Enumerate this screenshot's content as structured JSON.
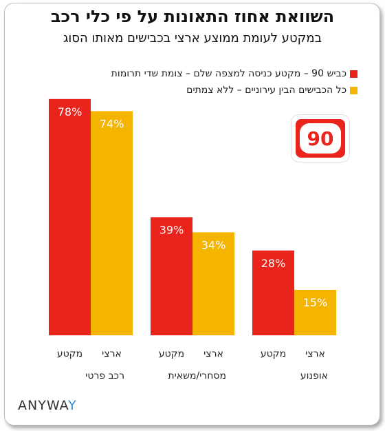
{
  "title": "השוואת אחוז התאונות על פי כלי רכב",
  "subtitle": "במקטע לעומת ממוצע ארצי בכבישים מאותו הסוג",
  "legend": [
    {
      "label": "כביש 90 – מקטע כניסה למצפה שלם – צומת שדי תרומות",
      "color": "#e8241d"
    },
    {
      "label": "כל הכבישים הבין עירוניים – ללא צמתים",
      "color": "#f5b400"
    }
  ],
  "road_sign": {
    "number": "90"
  },
  "logo": {
    "main": "ANYWA",
    "accent": "Y"
  },
  "chart_data": {
    "type": "bar",
    "categories": [
      "רכב פרטי",
      "מסחרי/משאית",
      "אופנוע"
    ],
    "bar_labels": [
      "מקטע",
      "ארצי"
    ],
    "series": [
      {
        "name": "מקטע",
        "values": [
          78,
          39,
          28
        ],
        "color": "#e8241d",
        "labels": [
          "78%",
          "39%",
          "28%"
        ]
      },
      {
        "name": "ארצי",
        "values": [
          74,
          34,
          15
        ],
        "color": "#f5b400",
        "labels": [
          "74%",
          "34%",
          "15%"
        ]
      }
    ],
    "ylim": [
      0,
      80
    ]
  }
}
